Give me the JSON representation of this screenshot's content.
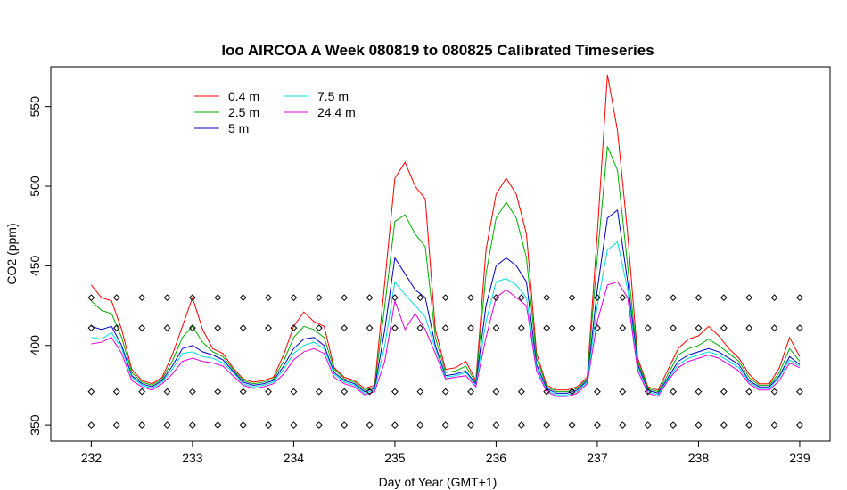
{
  "chart_data": {
    "type": "line",
    "title": "loo AIRCOA A  Week 080819 to 080825  Calibrated Timeseries",
    "xlabel": "Day of Year (GMT+1)",
    "ylabel": "CO2 (ppm)",
    "xlim": [
      231.6,
      239.3
    ],
    "ylim": [
      340,
      575
    ],
    "x_ticks": [
      232,
      233,
      234,
      235,
      236,
      237,
      238,
      239
    ],
    "y_ticks": [
      350,
      400,
      450,
      500,
      550
    ],
    "legend_position": "top-left",
    "grid": false,
    "series": [
      {
        "name": "0.4 m",
        "color": "#ff0000",
        "x": [
          232,
          232.1,
          232.2,
          232.3,
          232.4,
          232.5,
          232.6,
          232.7,
          232.8,
          232.9,
          233,
          233.1,
          233.2,
          233.3,
          233.4,
          233.5,
          233.6,
          233.7,
          233.8,
          233.9,
          234,
          234.1,
          234.2,
          234.3,
          234.4,
          234.5,
          234.6,
          234.7,
          234.8,
          234.9,
          235,
          235.1,
          235.2,
          235.3,
          235.4,
          235.5,
          235.6,
          235.7,
          235.8,
          235.9,
          236,
          236.1,
          236.2,
          236.3,
          236.4,
          236.5,
          236.6,
          236.7,
          236.8,
          236.9,
          237,
          237.1,
          237.2,
          237.3,
          237.4,
          237.5,
          237.6,
          237.7,
          237.8,
          237.9,
          238,
          238.1,
          238.2,
          238.3,
          238.4,
          238.5,
          238.6,
          238.7,
          238.8,
          238.9,
          239
        ],
        "y": [
          438,
          430,
          428,
          410,
          385,
          378,
          376,
          380,
          394,
          412,
          430,
          410,
          398,
          395,
          386,
          379,
          377,
          378,
          380,
          394,
          412,
          421,
          415,
          412,
          386,
          380,
          378,
          373,
          375,
          440,
          505,
          515,
          500,
          492,
          410,
          385,
          386,
          390,
          378,
          460,
          495,
          505,
          495,
          470,
          395,
          375,
          372,
          372,
          374,
          380,
          470,
          570,
          535,
          470,
          392,
          374,
          372,
          385,
          398,
          404,
          406,
          412,
          406,
          398,
          392,
          382,
          376,
          376,
          386,
          405,
          393
        ]
      },
      {
        "name": "2.5 m",
        "color": "#00b000",
        "x": [
          232,
          232.1,
          232.2,
          232.3,
          232.4,
          232.5,
          232.6,
          232.7,
          232.8,
          232.9,
          233,
          233.1,
          233.2,
          233.3,
          233.4,
          233.5,
          233.6,
          233.7,
          233.8,
          233.9,
          234,
          234.1,
          234.2,
          234.3,
          234.4,
          234.5,
          234.6,
          234.7,
          234.8,
          234.9,
          235,
          235.1,
          235.2,
          235.3,
          235.4,
          235.5,
          235.6,
          235.7,
          235.8,
          235.9,
          236,
          236.1,
          236.2,
          236.3,
          236.4,
          236.5,
          236.6,
          236.7,
          236.8,
          236.9,
          237,
          237.1,
          237.2,
          237.3,
          237.4,
          237.5,
          237.6,
          237.7,
          237.8,
          237.9,
          238,
          238.1,
          238.2,
          238.3,
          238.4,
          238.5,
          238.6,
          238.7,
          238.8,
          238.9,
          239
        ],
        "y": [
          428,
          422,
          420,
          405,
          383,
          377,
          375,
          379,
          390,
          405,
          412,
          402,
          396,
          393,
          385,
          378,
          376,
          377,
          379,
          390,
          405,
          412,
          410,
          405,
          385,
          379,
          377,
          372,
          374,
          425,
          478,
          482,
          470,
          462,
          405,
          383,
          384,
          387,
          377,
          445,
          480,
          490,
          480,
          455,
          392,
          374,
          371,
          371,
          373,
          379,
          455,
          525,
          510,
          450,
          390,
          373,
          371,
          382,
          394,
          398,
          400,
          404,
          400,
          395,
          390,
          380,
          375,
          375,
          383,
          398,
          390
        ]
      },
      {
        "name": "5 m",
        "color": "#0000cc",
        "x": [
          232,
          232.1,
          232.2,
          232.3,
          232.4,
          232.5,
          232.6,
          232.7,
          232.8,
          232.9,
          233,
          233.1,
          233.2,
          233.3,
          233.4,
          233.5,
          233.6,
          233.7,
          233.8,
          233.9,
          234,
          234.1,
          234.2,
          234.3,
          234.4,
          234.5,
          234.6,
          234.7,
          234.8,
          234.9,
          235,
          235.1,
          235.2,
          235.3,
          235.4,
          235.5,
          235.6,
          235.7,
          235.8,
          235.9,
          236,
          236.1,
          236.2,
          236.3,
          236.4,
          236.5,
          236.6,
          236.7,
          236.8,
          236.9,
          237,
          237.1,
          237.2,
          237.3,
          237.4,
          237.5,
          237.6,
          237.7,
          237.8,
          237.9,
          238,
          238.1,
          238.2,
          238.3,
          238.4,
          238.5,
          238.6,
          238.7,
          238.8,
          238.9,
          239
        ],
        "y": [
          412,
          410,
          412,
          400,
          381,
          376,
          374,
          378,
          387,
          398,
          400,
          396,
          394,
          391,
          384,
          377,
          375,
          376,
          378,
          387,
          398,
          404,
          405,
          400,
          383,
          378,
          376,
          371,
          373,
          410,
          455,
          445,
          435,
          430,
          400,
          381,
          382,
          384,
          376,
          425,
          450,
          455,
          450,
          440,
          388,
          373,
          370,
          370,
          372,
          378,
          435,
          480,
          485,
          440,
          388,
          372,
          370,
          380,
          390,
          394,
          396,
          398,
          396,
          392,
          388,
          378,
          374,
          374,
          381,
          393,
          388
        ]
      },
      {
        "name": "7.5 m",
        "color": "#00dddd",
        "x": [
          232,
          232.1,
          232.2,
          232.3,
          232.4,
          232.5,
          232.6,
          232.7,
          232.8,
          232.9,
          233,
          233.1,
          233.2,
          233.3,
          233.4,
          233.5,
          233.6,
          233.7,
          233.8,
          233.9,
          234,
          234.1,
          234.2,
          234.3,
          234.4,
          234.5,
          234.6,
          234.7,
          234.8,
          234.9,
          235,
          235.1,
          235.2,
          235.3,
          235.4,
          235.5,
          235.6,
          235.7,
          235.8,
          235.9,
          236,
          236.1,
          236.2,
          236.3,
          236.4,
          236.5,
          236.6,
          236.7,
          236.8,
          236.9,
          237,
          237.1,
          237.2,
          237.3,
          237.4,
          237.5,
          237.6,
          237.7,
          237.8,
          237.9,
          238,
          238.1,
          238.2,
          238.3,
          238.4,
          238.5,
          238.6,
          238.7,
          238.8,
          238.9,
          239
        ],
        "y": [
          405,
          404,
          408,
          398,
          380,
          375,
          373,
          377,
          385,
          395,
          396,
          393,
          392,
          389,
          383,
          376,
          374,
          375,
          377,
          385,
          395,
          400,
          402,
          398,
          382,
          377,
          375,
          370,
          372,
          400,
          440,
          432,
          425,
          418,
          398,
          380,
          381,
          383,
          375,
          415,
          440,
          442,
          438,
          430,
          386,
          372,
          369,
          369,
          371,
          377,
          425,
          460,
          465,
          435,
          386,
          371,
          369,
          379,
          388,
          392,
          394,
          396,
          394,
          390,
          386,
          377,
          373,
          373,
          380,
          391,
          387
        ]
      },
      {
        "name": "24.4 m",
        "color": "#dd00dd",
        "x": [
          232,
          232.1,
          232.2,
          232.3,
          232.4,
          232.5,
          232.6,
          232.7,
          232.8,
          232.9,
          233,
          233.1,
          233.2,
          233.3,
          233.4,
          233.5,
          233.6,
          233.7,
          233.8,
          233.9,
          234,
          234.1,
          234.2,
          234.3,
          234.4,
          234.5,
          234.6,
          234.7,
          234.8,
          234.9,
          235,
          235.1,
          235.2,
          235.3,
          235.4,
          235.5,
          235.6,
          235.7,
          235.8,
          235.9,
          236,
          236.1,
          236.2,
          236.3,
          236.4,
          236.5,
          236.6,
          236.7,
          236.8,
          236.9,
          237,
          237.1,
          237.2,
          237.3,
          237.4,
          237.5,
          237.6,
          237.7,
          237.8,
          237.9,
          238,
          238.1,
          238.2,
          238.3,
          238.4,
          238.5,
          238.6,
          238.7,
          238.8,
          238.9,
          239
        ],
        "y": [
          401,
          402,
          405,
          395,
          378,
          374,
          372,
          376,
          382,
          390,
          392,
          390,
          389,
          387,
          381,
          375,
          373,
          374,
          376,
          382,
          391,
          396,
          398,
          395,
          380,
          376,
          374,
          369,
          371,
          390,
          428,
          410,
          420,
          410,
          395,
          379,
          380,
          381,
          374,
          405,
          430,
          435,
          430,
          425,
          384,
          371,
          368,
          368,
          370,
          376,
          415,
          438,
          440,
          430,
          384,
          370,
          368,
          378,
          386,
          390,
          392,
          394,
          392,
          388,
          384,
          376,
          372,
          372,
          378,
          389,
          386
        ]
      }
    ],
    "marker_rows": [
      {
        "y": 430,
        "x": [
          232,
          232.25,
          232.5,
          232.75,
          233,
          233.25,
          233.5,
          233.75,
          234,
          234.25,
          234.5,
          234.75,
          235,
          235.25,
          235.5,
          235.75,
          236,
          236.25,
          236.5,
          236.75,
          237,
          237.25,
          237.5,
          237.75,
          238,
          238.25,
          238.5,
          238.75,
          239
        ]
      },
      {
        "y": 411,
        "x": [
          232,
          232.25,
          232.5,
          232.75,
          233,
          233.25,
          233.5,
          233.75,
          234,
          234.25,
          234.5,
          234.75,
          235,
          235.25,
          235.5,
          235.75,
          236,
          236.25,
          236.5,
          236.75,
          237,
          237.25,
          237.5,
          237.75,
          238,
          238.25,
          238.5,
          238.75,
          239
        ]
      },
      {
        "y": 371,
        "x": [
          232,
          232.25,
          232.5,
          232.75,
          233,
          233.25,
          233.5,
          233.75,
          234,
          234.25,
          234.5,
          234.75,
          235,
          235.25,
          235.5,
          235.75,
          236,
          236.25,
          236.5,
          236.75,
          237,
          237.25,
          237.5,
          237.75,
          238,
          238.25,
          238.5,
          238.75,
          239
        ]
      },
      {
        "y": 350,
        "x": [
          232,
          232.25,
          232.5,
          232.75,
          233,
          233.25,
          233.5,
          233.75,
          234,
          234.25,
          234.5,
          234.75,
          235,
          235.25,
          235.5,
          235.75,
          236,
          236.25,
          236.5,
          236.75,
          237,
          237.25,
          237.5,
          237.75,
          238,
          238.25,
          238.5,
          238.75,
          239
        ]
      }
    ]
  }
}
